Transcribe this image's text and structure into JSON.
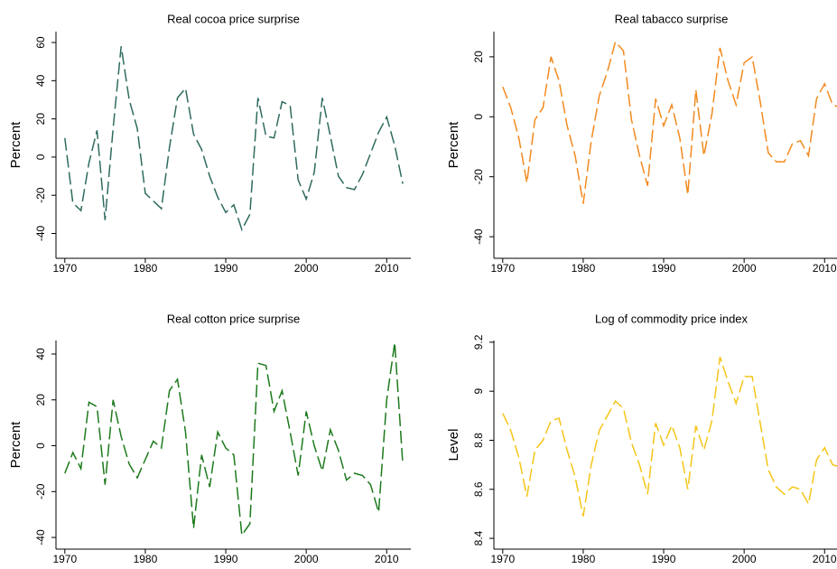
{
  "chart_data": [
    {
      "type": "line",
      "title": "Real cocoa price surprise",
      "y_label": "Percent",
      "color": "#2e6b5f",
      "x": [
        1970,
        1971,
        1972,
        1973,
        1974,
        1975,
        1976,
        1977,
        1978,
        1979,
        1980,
        1981,
        1982,
        1983,
        1984,
        1985,
        1986,
        1987,
        1988,
        1989,
        1990,
        1991,
        1992,
        1993,
        1994,
        1995,
        1996,
        1997,
        1998,
        1999,
        2000,
        2001,
        2002,
        2003,
        2004,
        2005,
        2006,
        2007,
        2008,
        2009,
        2010,
        2011,
        2012
      ],
      "values": [
        10,
        -24,
        -28,
        -3,
        14,
        -33,
        15,
        58,
        30,
        15,
        -19,
        -23,
        -27,
        5,
        31,
        36,
        12,
        4,
        -10,
        -21,
        -29,
        -25,
        -38,
        -30,
        31,
        11,
        10,
        29,
        27,
        -12,
        -22,
        -8,
        31,
        11,
        -10,
        -16,
        -17,
        -9,
        2,
        13,
        21,
        6,
        -14
      ],
      "xlim": [
        1968.9,
        2013
      ],
      "xticks": [
        1970,
        1980,
        1990,
        2000,
        2010
      ],
      "ylim": [
        -53,
        65.7
      ],
      "yticks": [
        -40,
        -20,
        0,
        20,
        40,
        60
      ]
    },
    {
      "type": "line",
      "title": "Real tabacco surprise",
      "y_label": "Percent",
      "color": "#f28a1e",
      "x": [
        1970,
        1971,
        1972,
        1973,
        1974,
        1975,
        1976,
        1977,
        1978,
        1979,
        1980,
        1981,
        1982,
        1983,
        1984,
        1985,
        1986,
        1987,
        1988,
        1989,
        1990,
        1991,
        1992,
        1993,
        1994,
        1995,
        1996,
        1997,
        1998,
        1999,
        2000,
        2001,
        2002,
        2003,
        2004,
        2005,
        2006,
        2007,
        2008,
        2009,
        2010,
        2011,
        2012
      ],
      "values": [
        10,
        3,
        -7,
        -22,
        -1,
        3,
        20,
        12,
        -3,
        -13,
        -29,
        -8,
        7,
        15,
        25,
        22,
        -1,
        -13,
        -23,
        6,
        -3,
        4,
        -7,
        -26,
        9,
        -13,
        1,
        23,
        12,
        4,
        18,
        20,
        5,
        -12,
        -15,
        -15,
        -9,
        -8,
        -13,
        6,
        11,
        4,
        3
      ],
      "xlim": [
        1968.9,
        2013
      ],
      "xticks": [
        1970,
        1980,
        1990,
        2000,
        2010
      ],
      "ylim": [
        -47.2,
        28.4
      ],
      "yticks": [
        -40,
        -20,
        0,
        20
      ]
    },
    {
      "type": "line",
      "title": "Real cotton price surprise",
      "y_label": "Percent",
      "color": "#1c7a1c",
      "x": [
        1970,
        1971,
        1972,
        1973,
        1974,
        1975,
        1976,
        1977,
        1978,
        1979,
        1980,
        1981,
        1982,
        1983,
        1984,
        1985,
        1986,
        1987,
        1988,
        1989,
        1990,
        1991,
        1992,
        1993,
        1994,
        1995,
        1996,
        1997,
        1998,
        1999,
        2000,
        2001,
        2002,
        2003,
        2004,
        2005,
        2006,
        2007,
        2008,
        2009,
        2010,
        2011,
        2012
      ],
      "values": [
        -12,
        -3,
        -10,
        19,
        17,
        -17,
        20,
        4,
        -8,
        -14,
        -6,
        2,
        -1,
        24,
        29,
        6,
        -36,
        -4,
        -18,
        6,
        -1,
        -4,
        -39,
        -34,
        36,
        35,
        15,
        24,
        6,
        -13,
        15,
        0,
        -11,
        7,
        -2,
        -15,
        -12,
        -13,
        -17,
        -29,
        20,
        45,
        -8
      ],
      "xlim": [
        1968.9,
        2013
      ],
      "xticks": [
        1970,
        1980,
        1990,
        2000,
        2010
      ],
      "ylim": [
        -45.1,
        45.9
      ],
      "yticks": [
        -40,
        -20,
        0,
        20,
        40
      ]
    },
    {
      "type": "line",
      "title": "Log of commodity price index",
      "y_label": "Level",
      "color": "#f5c518",
      "x": [
        1970,
        1971,
        1972,
        1973,
        1974,
        1975,
        1976,
        1977,
        1978,
        1979,
        1980,
        1981,
        1982,
        1983,
        1984,
        1985,
        1986,
        1987,
        1988,
        1989,
        1990,
        1991,
        1992,
        1993,
        1994,
        1995,
        1996,
        1997,
        1998,
        1999,
        2000,
        2001,
        2002,
        2003,
        2004,
        2005,
        2006,
        2007,
        2008,
        2009,
        2010,
        2011,
        2012
      ],
      "values": [
        8.91,
        8.84,
        8.73,
        8.57,
        8.76,
        8.8,
        8.88,
        8.89,
        8.76,
        8.65,
        8.49,
        8.7,
        8.84,
        8.9,
        8.96,
        8.93,
        8.79,
        8.7,
        8.58,
        8.87,
        8.78,
        8.86,
        8.77,
        8.6,
        8.86,
        8.76,
        8.88,
        9.14,
        9.04,
        8.95,
        9.06,
        9.06,
        8.87,
        8.68,
        8.61,
        8.58,
        8.61,
        8.6,
        8.54,
        8.72,
        8.77,
        8.7,
        8.69
      ],
      "xlim": [
        1968.9,
        2013
      ],
      "xticks": [
        1970,
        1980,
        1990,
        2000,
        2010
      ],
      "ylim": [
        8.356,
        9.207
      ],
      "yticks": [
        8.4,
        8.6,
        8.8,
        9,
        9.2
      ]
    }
  ]
}
